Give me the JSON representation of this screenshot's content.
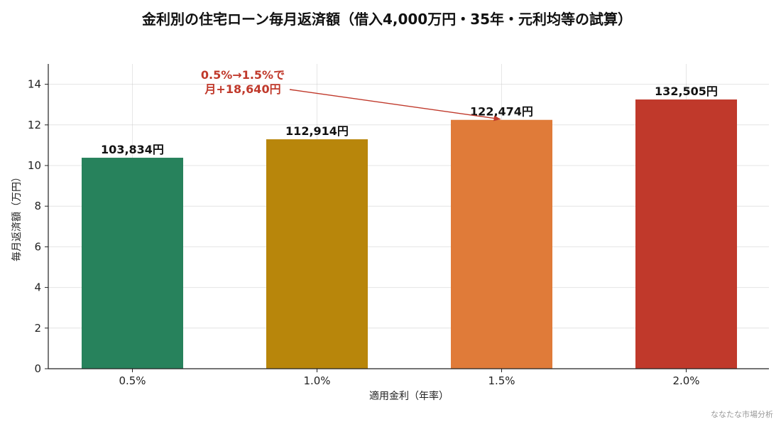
{
  "chart_data": {
    "type": "bar",
    "title": "金利別の住宅ローン毎月返済額（借入4,000万円・35年・元利均等の試算）",
    "xlabel": "適用金利（年率）",
    "ylabel": "毎月返済額（万円）",
    "categories": [
      "0.5%",
      "1.0%",
      "1.5%",
      "2.0%"
    ],
    "values": [
      10.3834,
      11.2914,
      12.2474,
      13.2505
    ],
    "data_labels": [
      "103,834円",
      "112,914円",
      "122,474円",
      "132,505円"
    ],
    "colors": [
      "#27825c",
      "#b8860b",
      "#e07b39",
      "#c0392b"
    ],
    "ylim": [
      0,
      15
    ],
    "yticks": [
      0,
      2,
      4,
      6,
      8,
      10,
      12,
      14
    ],
    "grid": true,
    "annotation": {
      "lines": [
        "0.5%→1.5%で",
        "月+18,640円"
      ],
      "color": "#c0392b",
      "target_category": "1.5%"
    }
  },
  "watermark": "ななたな市場分析"
}
